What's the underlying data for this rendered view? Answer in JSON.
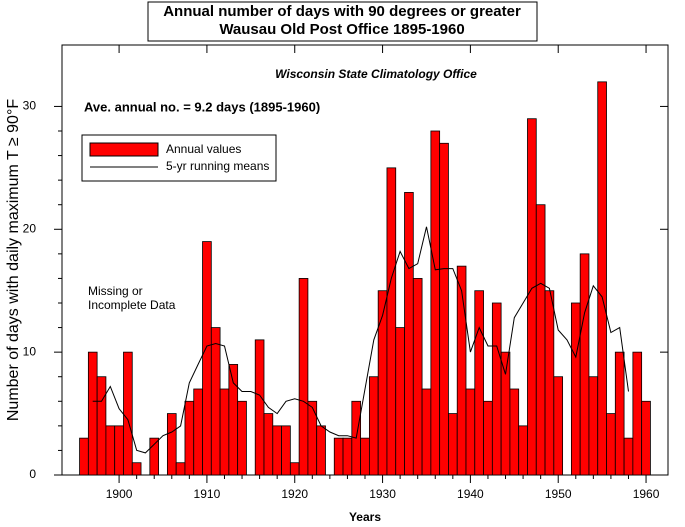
{
  "chart_data": {
    "type": "bar",
    "title": [
      "Annual number of days with 90 degrees or greater",
      "Wausau Old Post Office 1895-1960"
    ],
    "subtitle": "Wisconsin State Climatology Office",
    "annotations": [
      "Ave. annual no. = 9.2 days (1895-1960)",
      "Missing or",
      "Incomplete Data"
    ],
    "xlabel": "Years",
    "ylabel": "Number of days with daily maximum T ≥ 90°F",
    "x": [
      1896,
      1897,
      1898,
      1899,
      1900,
      1901,
      1902,
      1903,
      1904,
      1905,
      1906,
      1907,
      1908,
      1909,
      1910,
      1911,
      1912,
      1913,
      1914,
      1915,
      1916,
      1917,
      1918,
      1919,
      1920,
      1921,
      1922,
      1923,
      1924,
      1925,
      1926,
      1927,
      1928,
      1929,
      1930,
      1931,
      1932,
      1933,
      1934,
      1935,
      1936,
      1937,
      1938,
      1939,
      1940,
      1941,
      1942,
      1943,
      1944,
      1945,
      1946,
      1947,
      1948,
      1949,
      1950,
      1951,
      1952,
      1953,
      1954,
      1955,
      1956,
      1957,
      1958,
      1959,
      1960
    ],
    "series": [
      {
        "name": "Annual values",
        "color": "#ff0000",
        "values": [
          3,
          10,
          8,
          4,
          4,
          10,
          1,
          null,
          3,
          null,
          5,
          1,
          6,
          7,
          19,
          12,
          7,
          9,
          6,
          null,
          11,
          5,
          4,
          4,
          1,
          16,
          6,
          4,
          null,
          3,
          3,
          6,
          3,
          8,
          15,
          25,
          12,
          23,
          16,
          7,
          28,
          27,
          5,
          17,
          7,
          15,
          6,
          14,
          10,
          7,
          4,
          29,
          22,
          15,
          8,
          null,
          14,
          18,
          8,
          32,
          5,
          10,
          3,
          10,
          6
        ]
      },
      {
        "name": "5-yr running means",
        "color": "#000000",
        "x": [
          1897,
          1898,
          1899,
          1900,
          1901,
          1902,
          1903,
          1904,
          1905,
          1906,
          1907,
          1908,
          1909,
          1910,
          1911,
          1912,
          1913,
          1914,
          1915,
          1916,
          1917,
          1918,
          1919,
          1920,
          1921,
          1922,
          1923,
          1924,
          1925,
          1926,
          1927,
          1928,
          1929,
          1930,
          1931,
          1932,
          1933,
          1934,
          1935,
          1936,
          1937,
          1938,
          1939,
          1940,
          1941,
          1942,
          1943,
          1944,
          1945,
          1946,
          1947,
          1948,
          1949,
          1950,
          1951,
          1952,
          1953,
          1954,
          1955,
          1956,
          1957,
          1958
        ],
        "values": [
          6,
          6,
          7.2,
          5.4,
          4.5,
          2,
          1.8,
          2.5,
          3.2,
          3.5,
          4,
          7.5,
          9,
          10.5,
          10.7,
          10.5,
          7.5,
          6.8,
          6.8,
          6.5,
          5.5,
          5,
          6,
          6.2,
          6,
          5.5,
          4,
          3.5,
          3.2,
          3.2,
          3,
          7,
          11,
          13,
          16,
          18.2,
          16.8,
          17.2,
          20.2,
          16.7,
          16.8,
          16.8,
          15,
          10,
          12,
          10.5,
          10.5,
          8.2,
          12.8,
          14,
          15.2,
          15.6,
          15.2,
          11.8,
          11,
          9.6,
          13.2,
          15.4,
          14.5,
          11.6,
          12,
          6.8
        ]
      }
    ],
    "xlim": [
      1893.5,
      1962.5
    ],
    "ylim": [
      0,
      35
    ],
    "xticks": [
      1900,
      1910,
      1920,
      1930,
      1940,
      1950,
      1960
    ],
    "yticks": [
      0,
      10,
      20,
      30
    ]
  }
}
